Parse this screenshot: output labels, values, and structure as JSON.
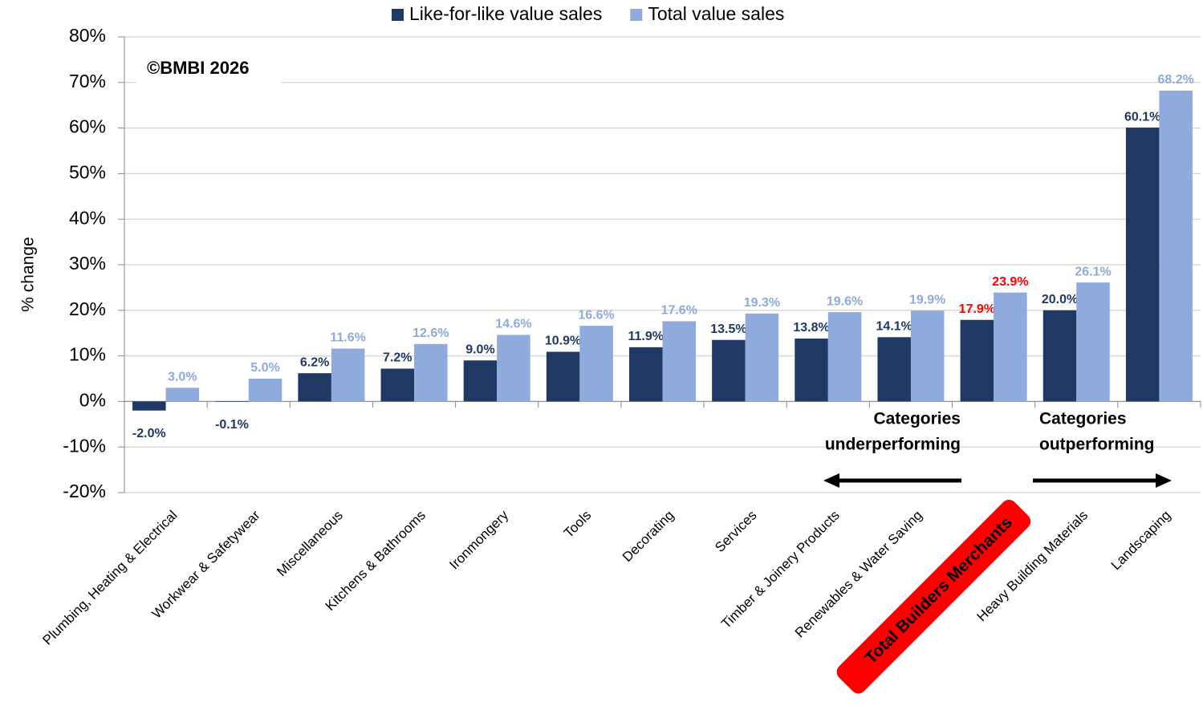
{
  "chart_data": {
    "type": "bar",
    "y_label": "% change",
    "copyright": "©BMBI 2026",
    "annotations": [
      [
        "Categories",
        "underperforming"
      ],
      [
        "Categories",
        "outperforming"
      ]
    ],
    "categories": [
      "Plumbing, Heating & Electrical",
      "Workwear & Safetywear",
      "Miscellaneous",
      "Kitchens & Bathrooms",
      "Ironmongery",
      "Tools",
      "Decorating",
      "Services",
      "Timber & Joinery Products",
      "Renewables & Water Saving",
      "Total Builders Merchants",
      "Heavy Building Materials",
      "Landscaping"
    ],
    "highlight_index": 10,
    "highlight_color": "#ff0000",
    "series": [
      {
        "name": "Like-for-like value sales",
        "color": "#1f3864",
        "values": [
          -2.0,
          -0.1,
          6.2,
          7.2,
          9.0,
          10.9,
          11.9,
          13.5,
          13.8,
          14.1,
          17.9,
          20.0,
          60.1
        ],
        "value_labels": [
          "-2.0%",
          "-0.1%",
          "6.2%",
          "7.2%",
          "9.0%",
          "10.9%",
          "11.9%",
          "13.5%",
          "13.8%",
          "14.1%",
          "17.9%",
          "20.0%",
          "60.1%"
        ]
      },
      {
        "name": "Total value sales",
        "color": "#8faadc",
        "values": [
          3.0,
          5.0,
          11.6,
          12.6,
          14.6,
          16.6,
          17.6,
          19.3,
          19.6,
          19.9,
          23.9,
          26.1,
          68.2
        ],
        "value_labels": [
          "3.0%",
          "5.0%",
          "11.6%",
          "12.6%",
          "14.6%",
          "16.6%",
          "17.6%",
          "19.3%",
          "19.6%",
          "19.9%",
          "23.9%",
          "26.1%",
          "68.2%"
        ]
      }
    ],
    "ylim": [
      -20,
      80
    ],
    "yticks": [
      {
        "value": -20,
        "label": "-20%"
      },
      {
        "value": -10,
        "label": "-10%"
      },
      {
        "value": 0,
        "label": "0%"
      },
      {
        "value": 10,
        "label": "10%"
      },
      {
        "value": 20,
        "label": "20%"
      },
      {
        "value": 30,
        "label": "30%"
      },
      {
        "value": 40,
        "label": "40%"
      },
      {
        "value": 50,
        "label": "50%"
      },
      {
        "value": 60,
        "label": "60%"
      },
      {
        "value": 70,
        "label": "70%"
      },
      {
        "value": 80,
        "label": "80%"
      }
    ],
    "grid": true
  }
}
